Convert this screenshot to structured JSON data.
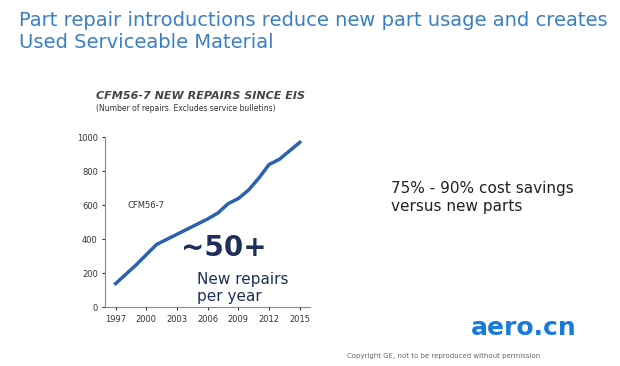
{
  "slide": {
    "title": "Part repair introductions reduce new part usage and creates Used Serviceable Material",
    "side_text": "75% - 90% cost savings versus new parts",
    "copyright": "Copyright GE, not to be reproduced without permission",
    "watermark": "aero.cn"
  },
  "chart_data": {
    "type": "line",
    "title": "CFM56-7 NEW REPAIRS SINCE EIS",
    "subtitle": "(Number of repairs. Excludes service bulletins)",
    "x": [
      1997,
      1998,
      1999,
      2000,
      2001,
      2002,
      2003,
      2004,
      2005,
      2006,
      2007,
      2008,
      2009,
      2010,
      2011,
      2012,
      2013,
      2014,
      2015
    ],
    "values": [
      140,
      195,
      250,
      310,
      370,
      400,
      430,
      460,
      490,
      520,
      555,
      610,
      640,
      690,
      760,
      840,
      870,
      920,
      970
    ],
    "color": "#2a62b0",
    "xlim": [
      1996,
      2016
    ],
    "xticks": [
      1997,
      2000,
      2003,
      2006,
      2009,
      2012,
      2015
    ],
    "ylim": [
      0,
      1000
    ],
    "yticks": [
      0,
      200,
      400,
      600,
      800,
      1000
    ],
    "grid": false,
    "annotations": [
      "CFM56-7",
      "~50+",
      "New repairs\nper year"
    ]
  }
}
